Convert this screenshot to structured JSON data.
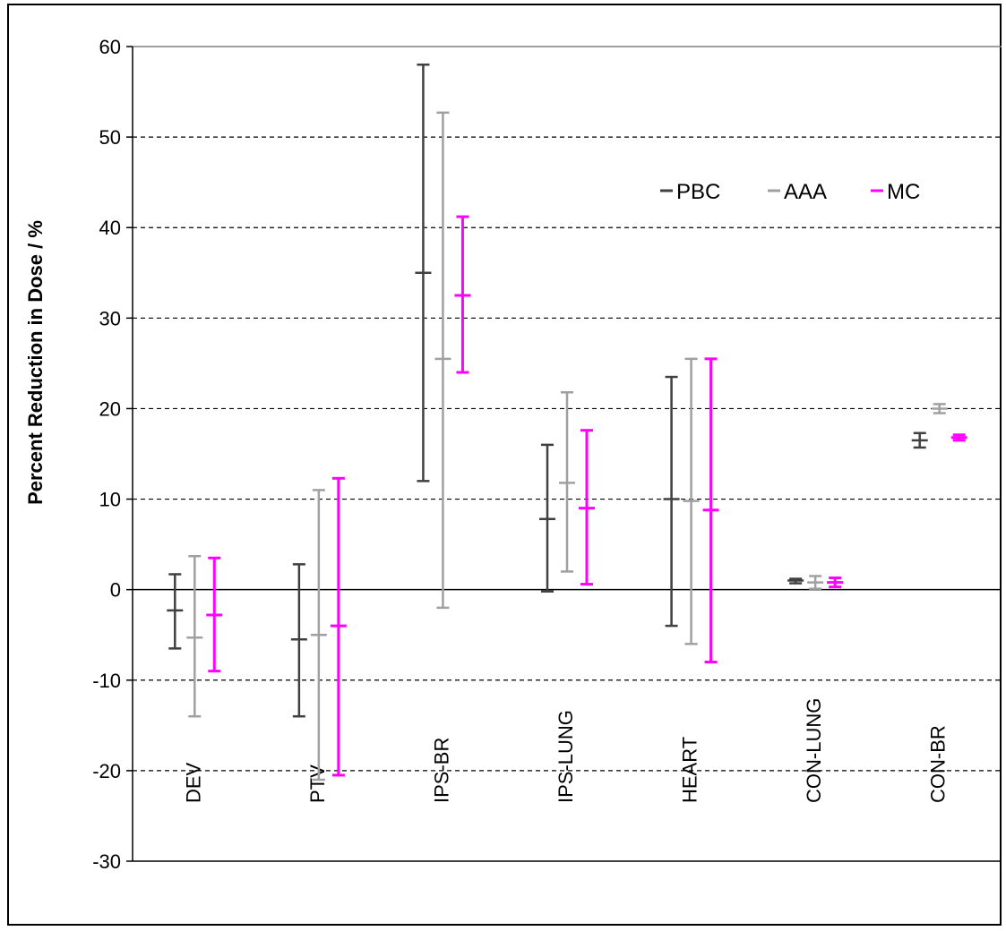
{
  "chart_data": {
    "type": "error-bar",
    "title": "",
    "xlabel": "",
    "ylabel": "Percent Reduction in Dose / %",
    "ylim": [
      -30,
      60
    ],
    "yticks": [
      -30,
      -20,
      -10,
      0,
      10,
      20,
      30,
      40,
      50,
      60
    ],
    "grid": "dashed horizontal",
    "legend_position": "top-right",
    "categories": [
      "DEV",
      "PTV",
      "IPS-BR",
      "IPS-LUNG",
      "HEART",
      "CON-LUNG",
      "CON-BR"
    ],
    "series": [
      {
        "name": "PBC",
        "color": "#404040",
        "mid": [
          -2.3,
          -5.5,
          35,
          7.8,
          10,
          1,
          16.5
        ],
        "low": [
          -6.5,
          -14,
          12,
          -0.2,
          -4,
          0.7,
          15.7
        ],
        "high": [
          1.7,
          2.8,
          58,
          16,
          23.5,
          1.2,
          17.3
        ]
      },
      {
        "name": "AAA",
        "color": "#a0a0a0",
        "mid": [
          -5.3,
          -5,
          25.5,
          11.8,
          9.8,
          0.8,
          20
        ],
        "low": [
          -14,
          -21,
          -2,
          2,
          -6,
          0.1,
          19.5
        ],
        "high": [
          3.7,
          11,
          52.7,
          21.8,
          25.5,
          1.5,
          20.5
        ]
      },
      {
        "name": "MC",
        "color": "#ff00ff",
        "mid": [
          -2.8,
          -4,
          32.5,
          9,
          8.8,
          0.8,
          16.8
        ],
        "low": [
          -9,
          -20.5,
          24,
          0.6,
          -8,
          0.3,
          16.5
        ],
        "high": [
          3.5,
          12.3,
          41.2,
          17.6,
          25.5,
          1.3,
          17.1
        ]
      }
    ]
  }
}
